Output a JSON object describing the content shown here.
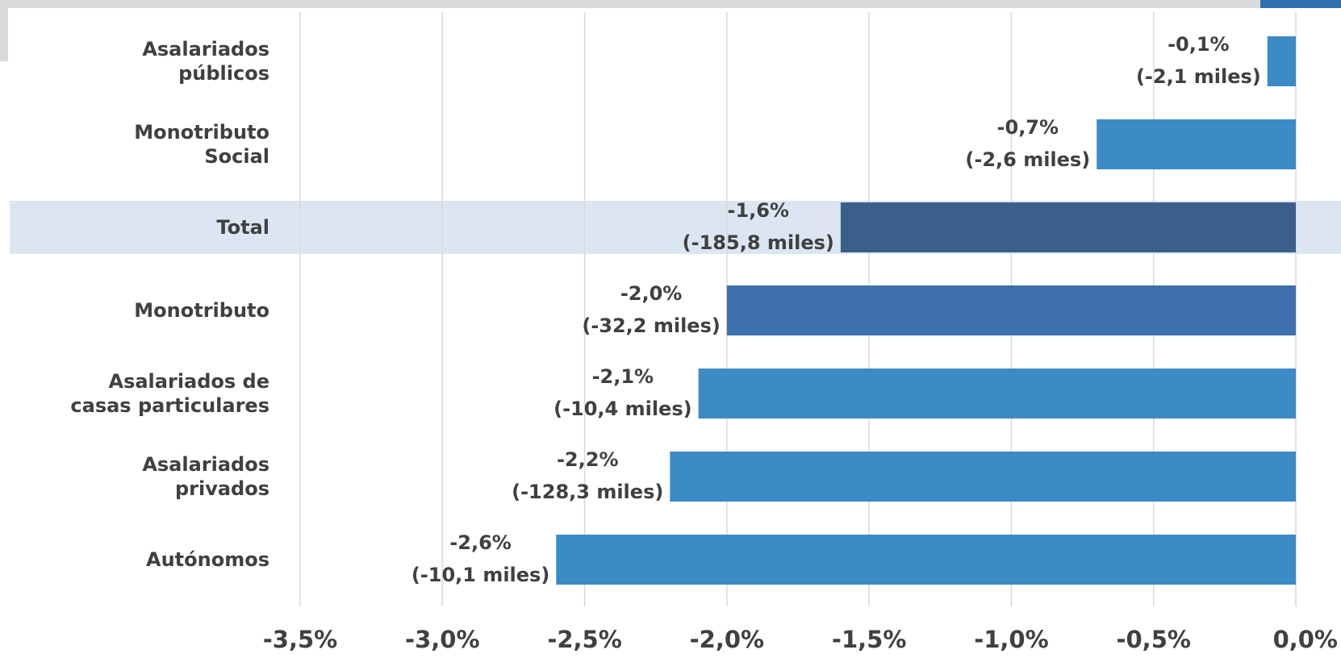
{
  "chart_data": {
    "type": "bar",
    "orientation": "horizontal",
    "categories": [
      [
        "Asalariados",
        "públicos"
      ],
      [
        "Monotributo",
        "Social"
      ],
      [
        "Total"
      ],
      [
        "Monotributo"
      ],
      [
        "Asalariados de",
        "casas particulares"
      ],
      [
        "Asalariados",
        "privados"
      ],
      [
        "Autónomos"
      ]
    ],
    "values": [
      -0.1,
      -0.7,
      -1.6,
      -2.0,
      -2.1,
      -2.2,
      -2.6
    ],
    "data_labels": [
      [
        "-0,1%",
        "(-2,1 miles)"
      ],
      [
        "-0,7%",
        "(-2,6 miles)"
      ],
      [
        "-1,6%",
        "(-185,8 miles)"
      ],
      [
        "-2,0%",
        "(-32,2 miles)"
      ],
      [
        "-2,1%",
        "(-10,4 miles)"
      ],
      [
        "-2,2%",
        "(-128,3 miles)"
      ],
      [
        "-2,6%",
        "(-10,1 miles)"
      ]
    ],
    "bar_colors": [
      "#3c8ac6",
      "#3c8ac6",
      "#3a5f8a",
      "#3f70ae",
      "#3c8ac6",
      "#3c8ac6",
      "#3c8ac6"
    ],
    "highlight_category_index": 2,
    "highlight_band_color": "#dce6f2",
    "xlim": [
      -3.5,
      0
    ],
    "xticks": [
      -3.5,
      -3.0,
      -2.5,
      -2.0,
      -1.5,
      -1.0,
      -0.5,
      0.0
    ],
    "xtick_labels": [
      "-3,5%",
      "-3,0%",
      "-2,5%",
      "-2,0%",
      "-1,5%",
      "-1,0%",
      "-0,5%",
      "0,0%"
    ],
    "grid": "vertical",
    "title": "",
    "xlabel": "",
    "ylabel": ""
  }
}
